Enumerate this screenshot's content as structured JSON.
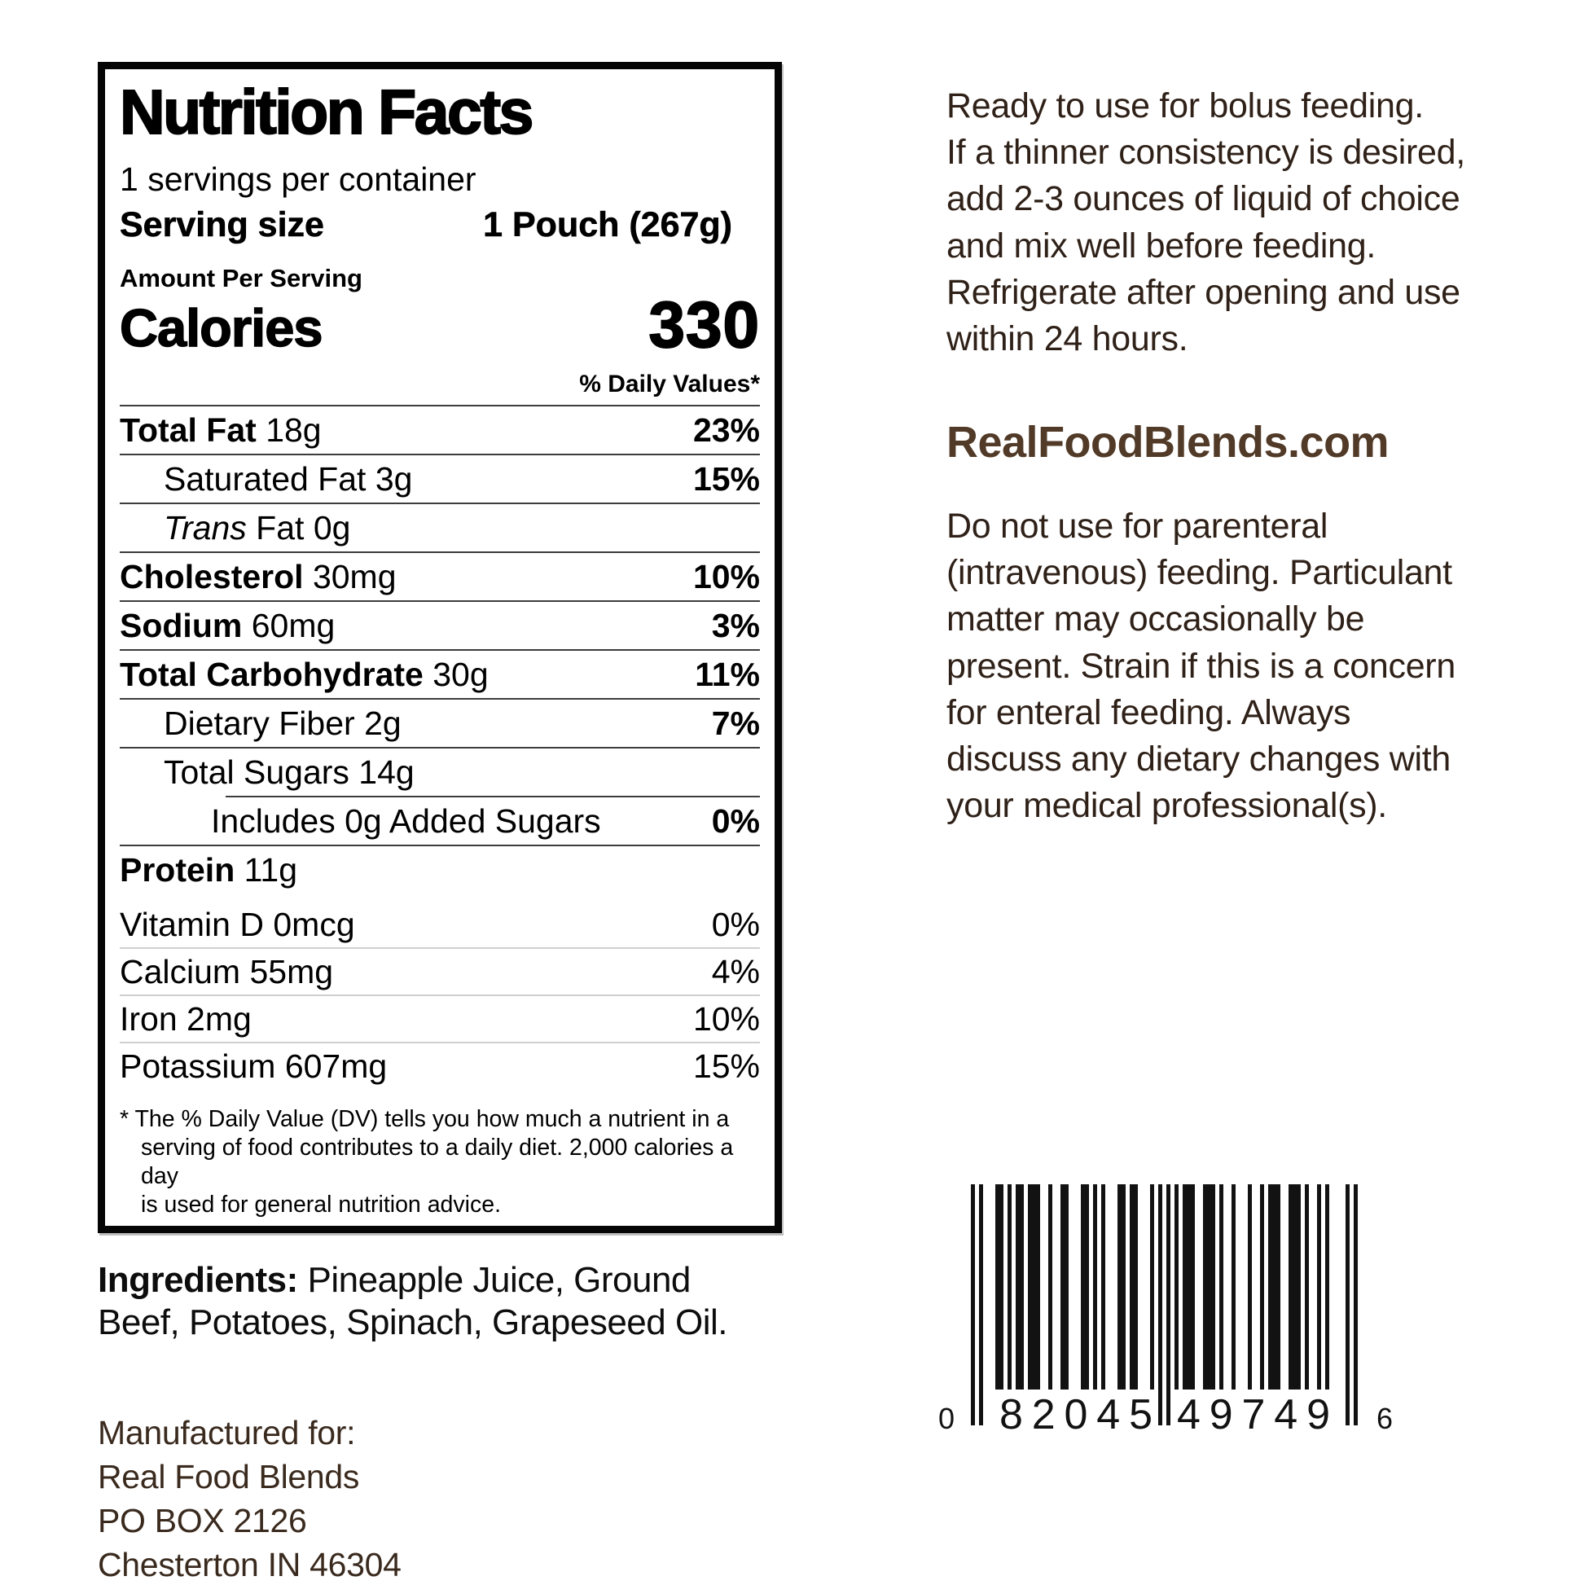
{
  "nutrition_label": {
    "title": "Nutrition Facts",
    "servings_per_container": "1 servings per container",
    "serving_size_label": "Serving size",
    "serving_size_value": "1 Pouch (267g)",
    "amount_per_serving": "Amount Per Serving",
    "calories_label": "Calories",
    "calories_value": "330",
    "daily_values_header": "% Daily Values*",
    "rows": [
      {
        "label": "Total Fat",
        "amount": "18g",
        "dv": "23%",
        "bold": true,
        "indent": 0
      },
      {
        "label": "Saturated Fat",
        "amount": "3g",
        "dv": "15%",
        "bold": false,
        "indent": 1
      },
      {
        "label_italic": "Trans",
        "label": "Fat",
        "amount": "0g",
        "dv": "",
        "bold": false,
        "indent": 1
      },
      {
        "label": "Cholesterol",
        "amount": "30mg",
        "dv": "10%",
        "bold": true,
        "indent": 0
      },
      {
        "label": "Sodium",
        "amount": "60mg",
        "dv": "3%",
        "bold": true,
        "indent": 0
      },
      {
        "label": "Total Carbohydrate",
        "amount": "30g",
        "dv": "11%",
        "bold": true,
        "indent": 0
      },
      {
        "label": "Dietary Fiber",
        "amount": "2g",
        "dv": "7%",
        "bold": false,
        "indent": 1
      },
      {
        "label": "Total Sugars",
        "amount": "14g",
        "dv": "",
        "bold": false,
        "indent": 1
      },
      {
        "label": "Includes 0g Added Sugars",
        "amount": "",
        "dv": "0%",
        "bold": false,
        "indent": 2,
        "sep_indent": true
      },
      {
        "label": "Protein",
        "amount": "11g",
        "dv": "",
        "bold": true,
        "indent": 0
      }
    ],
    "micronutrients": [
      {
        "label": "Vitamin D",
        "amount": "0mcg",
        "dv": "0%"
      },
      {
        "label": "Calcium",
        "amount": "55mg",
        "dv": "4%"
      },
      {
        "label": "Iron",
        "amount": "2mg",
        "dv": "10%"
      },
      {
        "label": "Potassium",
        "amount": "607mg",
        "dv": "15%"
      }
    ],
    "footnote_lines": [
      "* The % Daily Value (DV) tells you how much a nutrient in a",
      "serving of food contributes to a daily diet. 2,000 calories a day",
      "is used for general nutrition advice."
    ]
  },
  "ingredients": {
    "label": "Ingredients:",
    "text_lines": [
      "Pineapple Juice, Ground",
      "Beef, Potatoes, Spinach, Grapeseed Oil."
    ]
  },
  "manufacturer": {
    "lines": [
      "Manufactured for:",
      "Real Food Blends",
      "PO BOX 2126",
      "Chesterton IN 46304"
    ]
  },
  "right_column": {
    "usage_lines": [
      "Ready to use for bolus feeding.",
      "If a thinner consistency is desired,",
      "add 2-3 ounces of liquid of choice",
      "and mix well before feeding.",
      "Refrigerate after opening and use",
      "within 24 hours."
    ],
    "website": "RealFoodBlends.com",
    "warning_lines": [
      "Do not use for parenteral",
      "(intravenous) feeding. Particulant",
      "matter may occasionally be",
      "present. Strain if this is a concern",
      "for enteral feeding.  Always",
      "discuss any dietary changes with",
      "your medical professional(s)."
    ]
  },
  "barcode": {
    "digits": "082045497496",
    "display_left": "0",
    "display_group1": "82045",
    "display_group2": "49749",
    "display_right": "6"
  },
  "colors": {
    "label_ink": "#000000",
    "body_text_brown": "#2f2118",
    "website_brown": "#513a27",
    "separator_dark": "#3c3c3c",
    "separator_light": "#cfcfcf"
  }
}
